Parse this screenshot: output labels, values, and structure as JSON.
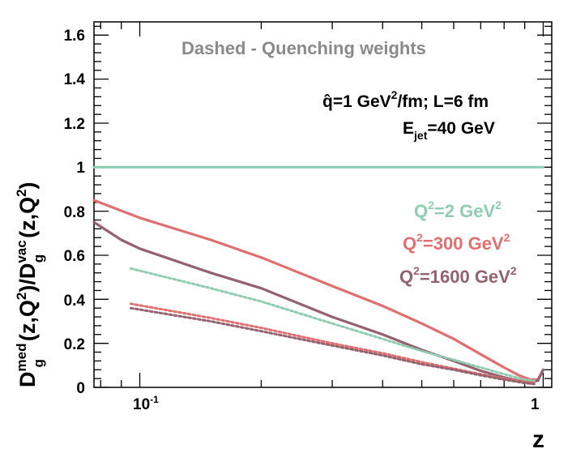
{
  "chart_data": {
    "type": "line",
    "title": "",
    "xlabel": "z",
    "ylabel": "D_g^med(z,Q^2)/D_g^vac(z,Q^2)",
    "xscale": "log",
    "xlim": [
      0.077,
      1.05
    ],
    "ylim": [
      0,
      1.66
    ],
    "x_tick_labels": [
      "10",
      "-1",
      "1"
    ],
    "y_ticks": [
      0,
      0.2,
      0.4,
      0.6,
      0.8,
      1,
      1.2,
      1.4,
      1.6
    ],
    "y_tick_labels": [
      "0",
      "0.2",
      "0.4",
      "0.6",
      "0.8",
      "1",
      "1.2",
      "1.4",
      "1.6"
    ],
    "ylabel_parts": {
      "a": "D",
      "a_sup": "med",
      "a_sub": "g",
      "b": "(z,Q",
      "b_sup": "2",
      "c": ")/D",
      "c_sup": "vac",
      "c_sub": "g",
      "d": "(z,Q",
      "d_sup": "2",
      "e": ")"
    },
    "annotations": {
      "dashed_note": "Dashed - Quenching weights",
      "qhat_main": "q̂=1 GeV",
      "qhat_sup": "2",
      "qhat_rest": "/fm; L=6 fm",
      "ejet_main": "E",
      "ejet_sub": "jet",
      "ejet_rest": "=40 GeV"
    },
    "legend": [
      {
        "pre": "Q",
        "sup": "2",
        "mid": "=2 GeV",
        "sup2": "2",
        "color": "#8fccb0"
      },
      {
        "pre": "Q",
        "sup": "2",
        "mid": "=300 GeV",
        "sup2": "2",
        "color": "#e07070"
      },
      {
        "pre": "Q",
        "sup": "2",
        "mid": "=1600 GeV",
        "sup2": "2",
        "color": "#94626e"
      }
    ],
    "series": [
      {
        "name": "Q^2=2 GeV^2 (solid)",
        "style": "solid",
        "color": "#8fccb0",
        "x": [
          0.077,
          0.2,
          0.5,
          1.0
        ],
        "y": [
          1.0,
          1.0,
          1.0,
          1.0
        ]
      },
      {
        "name": "Q^2=300 GeV^2 (solid)",
        "style": "solid",
        "color": "#e07070",
        "x": [
          0.077,
          0.1,
          0.15,
          0.2,
          0.3,
          0.4,
          0.5,
          0.6,
          0.7,
          0.8,
          0.87,
          0.93,
          0.97,
          1.0
        ],
        "y": [
          0.85,
          0.77,
          0.67,
          0.59,
          0.46,
          0.37,
          0.29,
          0.22,
          0.15,
          0.09,
          0.055,
          0.035,
          0.035,
          0.08
        ]
      },
      {
        "name": "Q^2=1600 GeV^2 (solid)",
        "style": "solid",
        "color": "#94626e",
        "x": [
          0.077,
          0.09,
          0.1,
          0.15,
          0.2,
          0.3,
          0.4,
          0.5,
          0.6,
          0.7,
          0.8,
          0.87,
          0.93,
          0.97,
          1.0
        ],
        "y": [
          0.75,
          0.67,
          0.63,
          0.52,
          0.45,
          0.32,
          0.24,
          0.17,
          0.12,
          0.075,
          0.045,
          0.03,
          0.025,
          0.03,
          0.08
        ]
      },
      {
        "name": "Q^2=2 GeV^2 (dashed)",
        "style": "dashed",
        "color": "#8fccb0",
        "x": [
          0.095,
          0.15,
          0.2,
          0.3,
          0.4,
          0.5,
          0.6,
          0.7,
          0.8,
          0.9,
          0.95
        ],
        "y": [
          0.54,
          0.45,
          0.39,
          0.29,
          0.22,
          0.165,
          0.125,
          0.09,
          0.06,
          0.035,
          0.03
        ]
      },
      {
        "name": "Q^2=300 GeV^2 (dashed)",
        "style": "dashed",
        "color": "#e07070",
        "x": [
          0.095,
          0.15,
          0.2,
          0.3,
          0.4,
          0.5,
          0.6,
          0.7,
          0.8,
          0.9,
          0.95
        ],
        "y": [
          0.38,
          0.315,
          0.27,
          0.2,
          0.155,
          0.115,
          0.085,
          0.06,
          0.04,
          0.025,
          0.02
        ]
      },
      {
        "name": "Q^2=1600 GeV^2 (dashed)",
        "style": "dashed",
        "color": "#94626e",
        "x": [
          0.095,
          0.15,
          0.2,
          0.3,
          0.4,
          0.5,
          0.6,
          0.7,
          0.8,
          0.9,
          0.95
        ],
        "y": [
          0.36,
          0.3,
          0.255,
          0.19,
          0.145,
          0.105,
          0.08,
          0.055,
          0.035,
          0.02,
          0.015
        ]
      }
    ]
  }
}
